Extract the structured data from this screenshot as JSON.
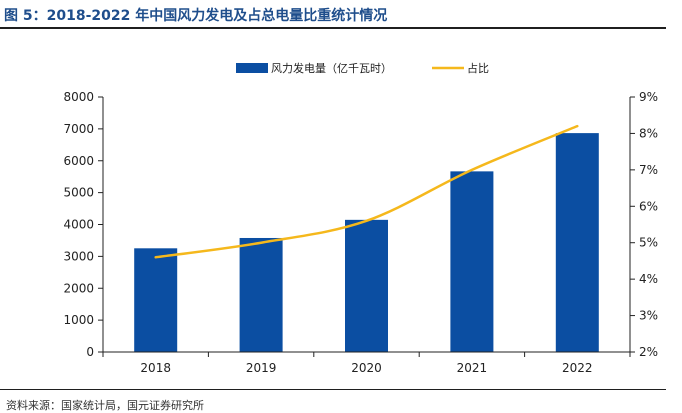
{
  "title": "图 5：2018-2022 年中国风力发电及占总电量比重统计情况",
  "source": "资料来源：国家统计局，国元证券研究所",
  "colors": {
    "bar": "#0b4ea2",
    "line": "#f5b81c",
    "title": "#1f4e8c",
    "axis": "#222222"
  },
  "chart_data": {
    "type": "bar",
    "categories": [
      "2018",
      "2019",
      "2020",
      "2021",
      "2022"
    ],
    "series": [
      {
        "name": "风力发电量（亿千瓦时）",
        "type": "bar",
        "axis": "left",
        "values": [
          3253,
          3577,
          4146,
          5667,
          6867
        ]
      },
      {
        "name": "占比",
        "type": "line",
        "axis": "right",
        "values": [
          4.6,
          5.0,
          5.6,
          7.0,
          8.2
        ]
      }
    ],
    "y_left": {
      "ylim": [
        0,
        8000
      ],
      "ticks": [
        "0",
        "1000",
        "2000",
        "3000",
        "4000",
        "5000",
        "6000",
        "7000",
        "8000"
      ]
    },
    "y_right": {
      "ylim": [
        2,
        9
      ],
      "ticks": [
        "2%",
        "3%",
        "4%",
        "5%",
        "6%",
        "7%",
        "8%",
        "9%"
      ]
    },
    "legend_position": "top-center",
    "grid": false
  }
}
